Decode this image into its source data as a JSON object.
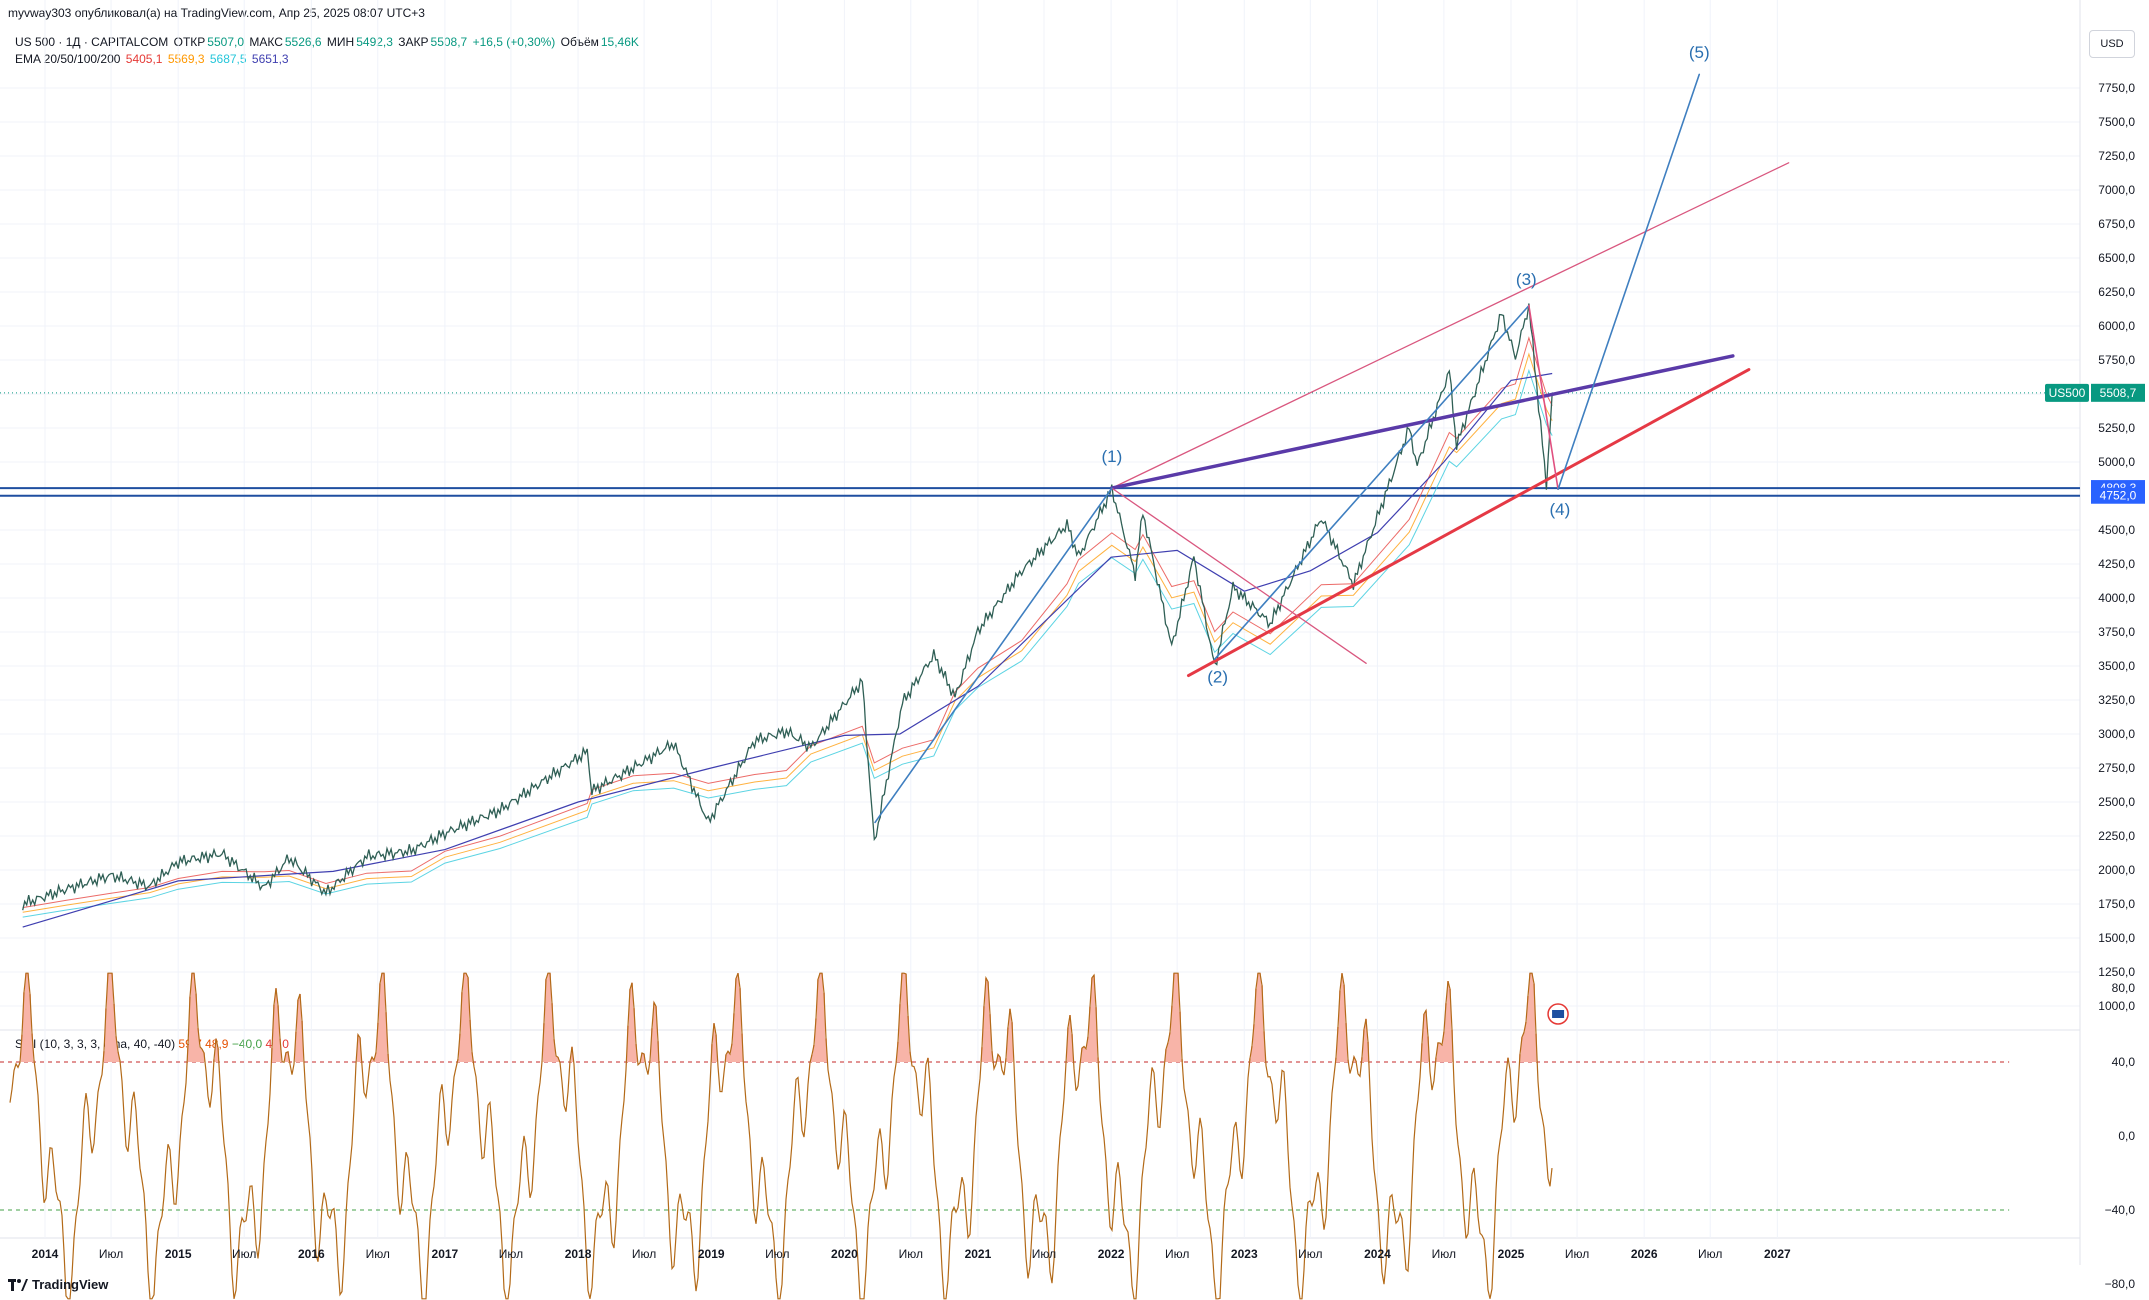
{
  "header": {
    "publisher": "myvway303 опубликовал(а) на TradingView.com, Апр 25, 2025 08:07 UTC+3"
  },
  "legend": {
    "symbol": "US 500 · 1Д · CAPITALCOM",
    "open_label": "ОТКР",
    "open_value": "5507,0",
    "high_label": "МАКС",
    "high_value": "5526,6",
    "low_label": "МИН",
    "low_value": "5492,3",
    "close_label": "ЗАКР",
    "close_value": "5508,7",
    "change": "+16,5 (+0,30%)",
    "volume_label": "Объём",
    "volume_value": "15,46K",
    "ema_label": "EMA 20/50/100/200",
    "ema_values": [
      "5405,1",
      "5569,3",
      "5687,5",
      "5651,3"
    ],
    "ema_colors": [
      "#e53935",
      "#ff9800",
      "#26c6da",
      "#3f3fb0"
    ]
  },
  "smi_legend": {
    "label": "SMI (10, 3, 3, 3, ema, 40, -40)",
    "values": [
      "59,7",
      "48,9",
      "−40,0",
      "40,0"
    ],
    "colors": [
      "#e65100",
      "#e65100",
      "#43a047",
      "#e53935"
    ]
  },
  "currency_button": "USD",
  "branding": "TradingView",
  "chart_data": {
    "type": "line",
    "title": "",
    "price_axis_ticks": [
      "7750,0",
      "7500,0",
      "7250,0",
      "7000,0",
      "6750,0",
      "6500,0",
      "6250,0",
      "6000,0",
      "5750,0",
      "5500,0",
      "5250,0",
      "5000,0",
      "4750,0",
      "4500,0",
      "4250,0",
      "4000,0",
      "3750,0",
      "3500,0",
      "3250,0",
      "3000,0",
      "2750,0",
      "2500,0",
      "2250,0",
      "2000,0",
      "1750,0",
      "1500,0",
      "1250,0",
      "1000,0"
    ],
    "smi_axis_ticks": [
      "80,0",
      "40,0",
      "0,0",
      "−40,0",
      "−80,0"
    ],
    "x_labels": [
      "2014",
      "Июл",
      "2015",
      "Июл",
      "2016",
      "Июл",
      "2017",
      "Июл",
      "2018",
      "Июл",
      "2019",
      "Июл",
      "2020",
      "Июл",
      "2021",
      "Июл",
      "2022",
      "Июл",
      "2023",
      "Июл",
      "2024",
      "Июл",
      "2025",
      "Июл",
      "2026",
      "Июл",
      "2027"
    ],
    "ylim": [
      950,
      7950
    ],
    "current_price": {
      "label": "US500",
      "value": "5508,7",
      "color": "#089981"
    },
    "levels": [
      {
        "value": "4808,3",
        "color": "#1f4fa0"
      },
      {
        "value": "4752,0",
        "color": "#1f4fa0"
      }
    ],
    "wave_labels": [
      "(1)",
      "(2)",
      "(3)",
      "(4)",
      "(5)"
    ],
    "price_series": [
      [
        "2013-11-01",
        1750
      ],
      [
        "2014-03-01",
        1860
      ],
      [
        "2014-07-01",
        1960
      ],
      [
        "2014-10-15",
        1880
      ],
      [
        "2015-01-01",
        2060
      ],
      [
        "2015-05-01",
        2120
      ],
      [
        "2015-08-25",
        1870
      ],
      [
        "2015-11-01",
        2090
      ],
      [
        "2016-02-10",
        1830
      ],
      [
        "2016-06-01",
        2100
      ],
      [
        "2016-10-01",
        2140
      ],
      [
        "2017-01-01",
        2270
      ],
      [
        "2017-06-01",
        2440
      ],
      [
        "2018-01-26",
        2870
      ],
      [
        "2018-02-08",
        2580
      ],
      [
        "2018-06-01",
        2750
      ],
      [
        "2018-09-20",
        2930
      ],
      [
        "2018-12-24",
        2350
      ],
      [
        "2019-04-30",
        2950
      ],
      [
        "2019-07-26",
        3020
      ],
      [
        "2019-10-01",
        2900
      ],
      [
        "2020-02-19",
        3390
      ],
      [
        "2020-03-23",
        2200
      ],
      [
        "2020-06-08",
        3230
      ],
      [
        "2020-09-02",
        3580
      ],
      [
        "2020-10-30",
        3270
      ],
      [
        "2021-01-01",
        3760
      ],
      [
        "2021-05-01",
        4200
      ],
      [
        "2021-09-02",
        4540
      ],
      [
        "2021-10-04",
        4300
      ],
      [
        "2022-01-03",
        4800
      ],
      [
        "2022-03-08",
        4170
      ],
      [
        "2022-03-29",
        4630
      ],
      [
        "2022-06-16",
        3640
      ],
      [
        "2022-08-16",
        4300
      ],
      [
        "2022-10-12",
        3490
      ],
      [
        "2022-12-01",
        4080
      ],
      [
        "2023-03-13",
        3810
      ],
      [
        "2023-07-31",
        4590
      ],
      [
        "2023-10-27",
        4100
      ],
      [
        "2024-03-28",
        5250
      ],
      [
        "2024-04-19",
        4970
      ],
      [
        "2024-07-16",
        5670
      ],
      [
        "2024-08-05",
        5120
      ],
      [
        "2024-12-06",
        6090
      ],
      [
        "2025-01-13",
        5770
      ],
      [
        "2025-02-19",
        6150
      ],
      [
        "2025-04-08",
        4830
      ],
      [
        "2025-04-24",
        5509
      ]
    ],
    "ema200_series": [
      [
        "2013-11-01",
        1580
      ],
      [
        "2015-01-01",
        1920
      ],
      [
        "2016-03-01",
        1990
      ],
      [
        "2017-01-01",
        2150
      ],
      [
        "2018-01-01",
        2500
      ],
      [
        "2019-01-01",
        2750
      ],
      [
        "2020-01-01",
        2990
      ],
      [
        "2020-06-01",
        3000
      ],
      [
        "2021-01-01",
        3350
      ],
      [
        "2022-01-01",
        4300
      ],
      [
        "2022-07-01",
        4350
      ],
      [
        "2023-01-01",
        4050
      ],
      [
        "2023-07-01",
        4200
      ],
      [
        "2024-01-01",
        4480
      ],
      [
        "2024-07-01",
        5000
      ],
      [
        "2025-01-01",
        5600
      ],
      [
        "2025-04-24",
        5651
      ]
    ],
    "drawings": [
      {
        "name": "upper-channel",
        "color": "#d9577f",
        "width": 1.3,
        "points": [
          [
            "2022-01-03",
            4808
          ],
          [
            "2027-02-01",
            7200
          ]
        ]
      },
      {
        "name": "wave1-line",
        "color": "#5a3aa8",
        "width": 3.5,
        "points": [
          [
            "2022-01-03",
            4808
          ],
          [
            "2026-09-01",
            5780
          ]
        ]
      },
      {
        "name": "lower-trendline",
        "color": "#e53945",
        "width": 3,
        "points": [
          [
            "2022-08-01",
            3430
          ],
          [
            "2026-10-15",
            5680
          ]
        ]
      },
      {
        "name": "declining-line",
        "color": "#d9577f",
        "width": 1.3,
        "points": [
          [
            "2022-01-03",
            4808
          ],
          [
            "2023-12-01",
            3520
          ]
        ]
      },
      {
        "name": "wave-2-3",
        "color": "#3f7fc0",
        "width": 1.6,
        "points": [
          [
            "2022-10-12",
            3550
          ],
          [
            "2025-02-19",
            6150
          ]
        ]
      },
      {
        "name": "covid-rally",
        "color": "#3f7fc0",
        "width": 1.6,
        "points": [
          [
            "2020-03-25",
            2350
          ],
          [
            "2022-01-03",
            4808
          ]
        ]
      },
      {
        "name": "wave-3-4",
        "color": "#e05080",
        "width": 1.6,
        "points": [
          [
            "2025-02-19",
            6150
          ],
          [
            "2025-05-10",
            4800
          ]
        ]
      },
      {
        "name": "wave-4-5",
        "color": "#3f7fc0",
        "width": 1.6,
        "points": [
          [
            "2025-05-10",
            4800
          ],
          [
            "2026-06-01",
            7850
          ]
        ]
      }
    ]
  }
}
